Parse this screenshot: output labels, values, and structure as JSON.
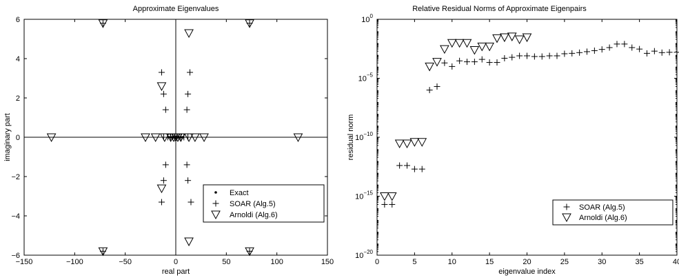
{
  "chart_data": [
    {
      "type": "scatter",
      "title": "Approximate Eigenvalues",
      "xlabel": "real part",
      "ylabel": "imaginary part",
      "xlim": [
        -150,
        150
      ],
      "ylim": [
        -6,
        6
      ],
      "xticks": [
        -150,
        -100,
        -50,
        0,
        50,
        100,
        150
      ],
      "yticks": [
        -6,
        -4,
        -2,
        0,
        2,
        4,
        6
      ],
      "grid": false,
      "axis_lines_through_origin": true,
      "legend_position": "lower-right",
      "series": [
        {
          "name": "Exact",
          "marker": "dot",
          "points": [
            [
              -7,
              0
            ],
            [
              -5,
              0
            ],
            [
              -3,
              0
            ],
            [
              -2,
              0
            ],
            [
              -1,
              0
            ],
            [
              0,
              0
            ],
            [
              1,
              0
            ],
            [
              2,
              0
            ],
            [
              3,
              0
            ],
            [
              5,
              0
            ],
            [
              7,
              0
            ]
          ]
        },
        {
          "name": "SOAR (Alg.5)",
          "marker": "plus",
          "points": [
            [
              -14,
              3.3
            ],
            [
              14,
              3.3
            ],
            [
              -12,
              2.2
            ],
            [
              12,
              2.2
            ],
            [
              -10,
              1.4
            ],
            [
              11,
              1.4
            ],
            [
              -10,
              -1.4
            ],
            [
              11,
              -1.4
            ],
            [
              -12,
              -2.2
            ],
            [
              12,
              -2.2
            ],
            [
              -14,
              -3.3
            ],
            [
              15,
              -3.3
            ],
            [
              -72,
              5.8
            ],
            [
              73,
              5.8
            ],
            [
              -72,
              -5.8
            ],
            [
              73,
              -5.8
            ],
            [
              -12,
              0
            ],
            [
              -8,
              0
            ],
            [
              -5,
              0
            ],
            [
              -3,
              0
            ],
            [
              0,
              0
            ],
            [
              3,
              0
            ],
            [
              5,
              0
            ],
            [
              8,
              0
            ],
            [
              12,
              0
            ]
          ]
        },
        {
          "name": "Arnoldi (Alg.6)",
          "marker": "triangle-down",
          "points": [
            [
              -123,
              0
            ],
            [
              -30,
              0
            ],
            [
              -20,
              0
            ],
            [
              -11,
              0
            ],
            [
              -5,
              0
            ],
            [
              -2,
              0
            ],
            [
              0,
              0
            ],
            [
              2,
              0
            ],
            [
              5,
              0
            ],
            [
              13,
              0
            ],
            [
              19,
              0
            ],
            [
              28,
              0
            ],
            [
              121,
              0
            ],
            [
              -72,
              5.8
            ],
            [
              73,
              5.8
            ],
            [
              -72,
              -5.8
            ],
            [
              73,
              -5.8
            ],
            [
              -14,
              2.6
            ],
            [
              -14,
              -2.6
            ],
            [
              13,
              5.3
            ],
            [
              13,
              -5.3
            ]
          ]
        }
      ]
    },
    {
      "type": "scatter",
      "title": "Relative Residual Norms of Approximate Eigenpairs",
      "xlabel": "eigenvalue index",
      "ylabel": "residual norm",
      "xlim": [
        0,
        40
      ],
      "ylim": [
        1e-20,
        1
      ],
      "yscale": "log",
      "xticks": [
        0,
        5,
        10,
        15,
        20,
        25,
        30,
        35,
        40
      ],
      "yticks": [
        {
          "value": 1e-20,
          "label_base": "10",
          "label_exp": "−20"
        },
        {
          "value": 1e-15,
          "label_base": "10",
          "label_exp": "−15"
        },
        {
          "value": 1e-10,
          "label_base": "10",
          "label_exp": "−10"
        },
        {
          "value": 1e-05,
          "label_base": "10",
          "label_exp": "−5"
        },
        {
          "value": 1,
          "label_base": "10",
          "label_exp": "0"
        }
      ],
      "grid": false,
      "legend_position": "lower-right",
      "series": [
        {
          "name": "SOAR (Alg.5)",
          "marker": "plus",
          "points": [
            [
              1,
              2e-16
            ],
            [
              2,
              2e-16
            ],
            [
              3,
              4e-13
            ],
            [
              4,
              4e-13
            ],
            [
              5,
              2e-13
            ],
            [
              6,
              2e-13
            ],
            [
              7,
              1e-06
            ],
            [
              8,
              2e-06
            ],
            [
              9,
              0.0002
            ],
            [
              10,
              0.0001
            ],
            [
              11,
              0.0003
            ],
            [
              12,
              0.00025
            ],
            [
              13,
              0.00025
            ],
            [
              14,
              0.0004
            ],
            [
              15,
              0.00022
            ],
            [
              16,
              0.00022
            ],
            [
              17,
              0.0005
            ],
            [
              18,
              0.0006
            ],
            [
              19,
              0.0008
            ],
            [
              20,
              0.0008
            ],
            [
              21,
              0.0007
            ],
            [
              22,
              0.0007
            ],
            [
              23,
              0.0008
            ],
            [
              24,
              0.0008
            ],
            [
              25,
              0.0012
            ],
            [
              26,
              0.0013
            ],
            [
              27,
              0.0015
            ],
            [
              28,
              0.0018
            ],
            [
              29,
              0.0022
            ],
            [
              30,
              0.0028
            ],
            [
              31,
              0.004
            ],
            [
              32,
              0.008
            ],
            [
              33,
              0.008
            ],
            [
              34,
              0.004
            ],
            [
              35,
              0.003
            ],
            [
              36,
              0.0013
            ],
            [
              37,
              0.002
            ],
            [
              38,
              0.0015
            ],
            [
              39,
              0.0016
            ],
            [
              40,
              0.0016
            ]
          ]
        },
        {
          "name": "Arnoldi (Alg.6)",
          "marker": "triangle-down",
          "points": [
            [
              1,
              1e-15
            ],
            [
              2,
              1e-15
            ],
            [
              3,
              3e-11
            ],
            [
              4,
              3e-11
            ],
            [
              5,
              4e-11
            ],
            [
              6,
              4e-11
            ],
            [
              7,
              0.0001
            ],
            [
              8,
              0.00025
            ],
            [
              9,
              0.003
            ],
            [
              10,
              0.01
            ],
            [
              11,
              0.01
            ],
            [
              12,
              0.01
            ],
            [
              13,
              0.0025
            ],
            [
              14,
              0.005
            ],
            [
              15,
              0.005
            ],
            [
              16,
              0.025
            ],
            [
              17,
              0.03
            ],
            [
              18,
              0.035
            ],
            [
              19,
              0.02
            ],
            [
              20,
              0.03
            ]
          ]
        }
      ]
    }
  ]
}
